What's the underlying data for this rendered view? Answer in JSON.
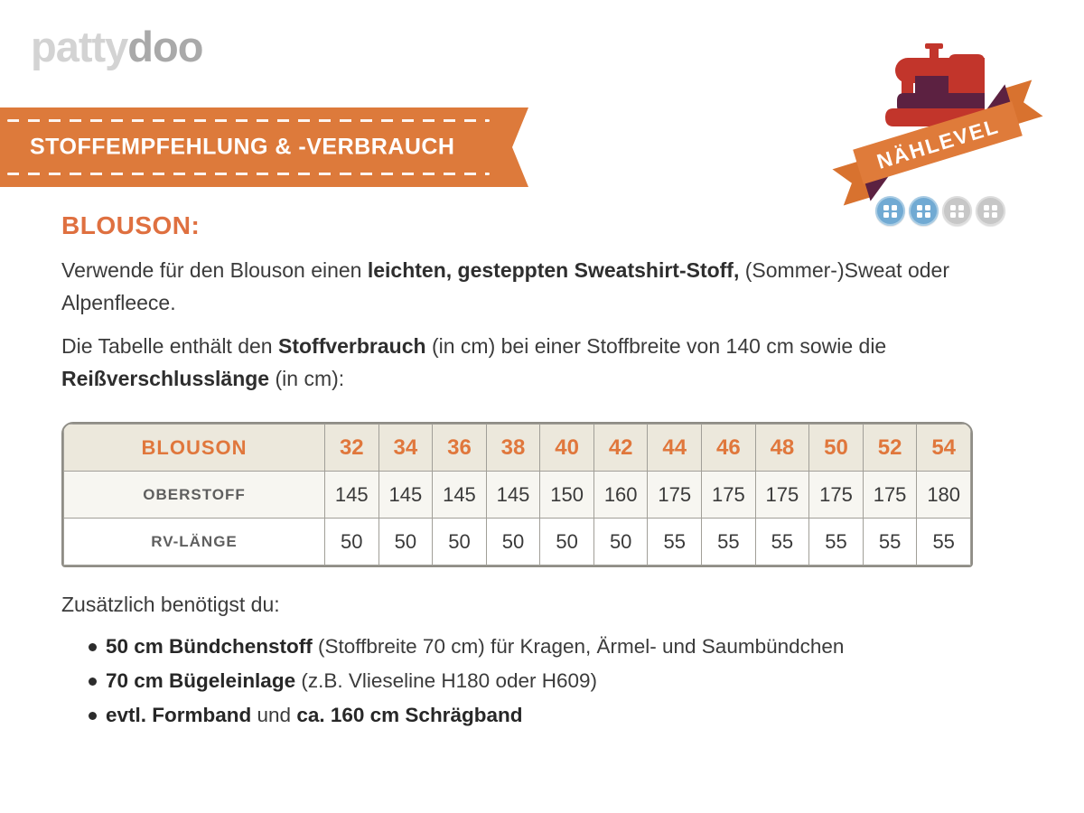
{
  "logo": {
    "part1": "patty",
    "part2": "doo"
  },
  "banner": {
    "title": "STOFFEMPFEHLUNG & -VERBRAUCH",
    "color": "#dd7a3b"
  },
  "badge": {
    "ribbon_label": "NÄHLEVEL",
    "levels": [
      "active",
      "active",
      "inactive",
      "inactive"
    ],
    "level_filled": 2,
    "level_total": 4,
    "colors": {
      "machine_red": "#c2352b",
      "machine_dark": "#5c2141",
      "ribbon_orange": "#df7b3a",
      "button_blue": "#71aad3",
      "button_gray": "#c7c7c7"
    }
  },
  "section": {
    "heading": "BLOUSON:",
    "heading_color": "#df7040"
  },
  "intro": {
    "segments": [
      {
        "t": "Verwende für den Blouson einen ",
        "b": false
      },
      {
        "t": "leichten, gesteppten Sweatshirt-Stoff,",
        "b": true
      },
      {
        "t": " (Sommer-)Sweat oder Alpenfleece.",
        "b": false
      }
    ]
  },
  "table_intro": {
    "segments": [
      {
        "t": "Die Tabelle enthält den ",
        "b": false
      },
      {
        "t": "Stoffverbrauch",
        "b": true
      },
      {
        "t": " (in cm) bei einer Stoffbreite von 140 cm sowie die ",
        "b": false
      },
      {
        "t": "Reißverschlusslänge",
        "b": true
      },
      {
        "t": " (in cm):",
        "b": false
      }
    ]
  },
  "table": {
    "title": "BLOUSON",
    "sizes": [
      "32",
      "34",
      "36",
      "38",
      "40",
      "42",
      "44",
      "46",
      "48",
      "50",
      "52",
      "54"
    ],
    "rows": [
      {
        "label": "OBERSTOFF",
        "values": [
          "145",
          "145",
          "145",
          "145",
          "150",
          "160",
          "175",
          "175",
          "175",
          "175",
          "175",
          "180"
        ]
      },
      {
        "label": "RV-LÄNGE",
        "values": [
          "50",
          "50",
          "50",
          "50",
          "50",
          "50",
          "55",
          "55",
          "55",
          "55",
          "55",
          "55"
        ]
      }
    ],
    "header_bg": "#ece8dc",
    "number_color": "#e0773c"
  },
  "extras": {
    "heading": "Zusätzlich benötigst du:",
    "items": [
      [
        {
          "t": "50 cm Bündchenstoff",
          "b": true
        },
        {
          "t": " (Stoffbreite 70 cm) für Kragen, Ärmel- und Saumbündchen",
          "b": false
        }
      ],
      [
        {
          "t": "70 cm Bügeleinlage",
          "b": true
        },
        {
          "t": " (z.B. Vlieseline H180 oder H609)",
          "b": false
        }
      ],
      [
        {
          "t": "evtl. Formband",
          "b": true
        },
        {
          "t": " und ",
          "b": false
        },
        {
          "t": "ca. 160 cm Schrägband",
          "b": true
        }
      ]
    ]
  }
}
